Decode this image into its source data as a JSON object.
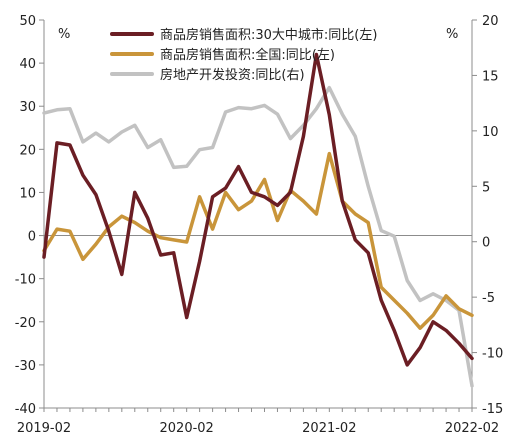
{
  "chart_data": {
    "type": "line",
    "x": [
      "2019-02",
      "2019-03",
      "2019-04",
      "2019-05",
      "2019-06",
      "2019-07",
      "2019-08",
      "2019-09",
      "2019-10",
      "2019-11",
      "2019-12",
      "2020-02",
      "2020-03",
      "2020-04",
      "2020-05",
      "2020-06",
      "2020-07",
      "2020-08",
      "2020-09",
      "2020-10",
      "2020-11",
      "2020-12",
      "2021-02",
      "2021-03",
      "2021-04",
      "2021-05",
      "2021-06",
      "2021-07",
      "2021-08",
      "2021-09",
      "2021-10",
      "2021-11",
      "2021-12",
      "2022-02"
    ],
    "x_tick_labels": [
      "2019-02",
      "2020-02",
      "2021-02",
      "2022-02"
    ],
    "y_left": {
      "min": -40,
      "max": 50,
      "step": 10,
      "unit": "%"
    },
    "y_right": {
      "min": -15,
      "max": 20,
      "step": 5,
      "unit": "%"
    },
    "legend_position": "top",
    "grid": false,
    "series": [
      {
        "name": "商品房销售面积:30大中城市:同比(左)",
        "axis": "left",
        "color": "#6b1e24",
        "x": [
          "2019-02",
          "2019-03",
          "2019-04",
          "2019-05",
          "2019-06",
          "2019-07",
          "2019-08",
          "2019-09",
          "2019-10",
          "2019-11",
          "2019-12",
          "2020-02",
          "2020-03",
          "2020-04",
          "2020-05",
          "2020-06",
          "2020-07",
          "2020-08",
          "2020-09",
          "2020-10",
          "2020-11",
          "2020-12",
          "2021-02",
          "2021-03",
          "2021-04",
          "2021-05",
          "2021-06",
          "2021-07",
          "2021-08",
          "2021-09",
          "2021-10",
          "2021-11",
          "2021-12",
          "2022-02"
        ],
        "values": [
          -5,
          21.5,
          21,
          14,
          9.5,
          1,
          -9,
          10,
          4,
          -4.5,
          -4,
          -19,
          -6,
          9,
          11,
          16,
          10,
          9,
          7,
          10,
          23,
          42,
          28,
          8,
          -1,
          -4,
          -15,
          -22,
          -30,
          -26,
          -20,
          -22,
          -25,
          -28.5
        ]
      },
      {
        "name": "商品房销售面积:全国:同比(左)",
        "axis": "left",
        "color": "#c9953a",
        "x": [
          "2019-02",
          "2019-03",
          "2019-04",
          "2019-05",
          "2019-06",
          "2019-07",
          "2019-08",
          "2019-09",
          "2019-10",
          "2019-11",
          "2019-12",
          "2020-02",
          "2020-03",
          "2020-04",
          "2020-05",
          "2020-06",
          "2020-07",
          "2020-08",
          "2020-09",
          "2020-10",
          "2020-11",
          "2020-12",
          "2021-02",
          "2021-03",
          "2021-04",
          "2021-05",
          "2021-06",
          "2021-07",
          "2021-08",
          "2021-09",
          "2021-10",
          "2021-11",
          "2021-12",
          "2022-02"
        ],
        "values": [
          -3.5,
          1.5,
          1,
          -5.5,
          -2,
          2,
          4.5,
          3,
          1,
          -0.5,
          -1,
          -1.5,
          9,
          1.5,
          10,
          6,
          8,
          13,
          3.5,
          10.5,
          8,
          5,
          19,
          8,
          5,
          3,
          -12,
          -15,
          -18,
          -21.5,
          -18.5,
          -14,
          -17,
          -18.5
        ]
      },
      {
        "name": "房地产开发投资:同比(右)",
        "axis": "right",
        "color": "#c2c2c2",
        "x": [
          "2019-02",
          "2019-03",
          "2019-04",
          "2019-05",
          "2019-06",
          "2019-07",
          "2019-08",
          "2019-09",
          "2019-10",
          "2019-11",
          "2019-12",
          "2020-02",
          "2020-03",
          "2020-04",
          "2020-05",
          "2020-06",
          "2020-07",
          "2020-08",
          "2020-09",
          "2020-10",
          "2020-11",
          "2020-12",
          "2021-02",
          "2021-03",
          "2021-04",
          "2021-05",
          "2021-06",
          "2021-07",
          "2021-08",
          "2021-09",
          "2021-10",
          "2021-11",
          "2021-12",
          "2022-02"
        ],
        "values": [
          11.6,
          11.9,
          12,
          9,
          9.8,
          9,
          9.9,
          10.5,
          8.5,
          9.2,
          6.7,
          6.8,
          8.3,
          8.5,
          11.7,
          12.1,
          12,
          12.3,
          11.5,
          9.3,
          10.5,
          12,
          13.9,
          11.5,
          9.5,
          5,
          1,
          0.5,
          -3.5,
          -5.3,
          -4.7,
          -5.3,
          -6.2,
          -13
        ]
      }
    ]
  }
}
